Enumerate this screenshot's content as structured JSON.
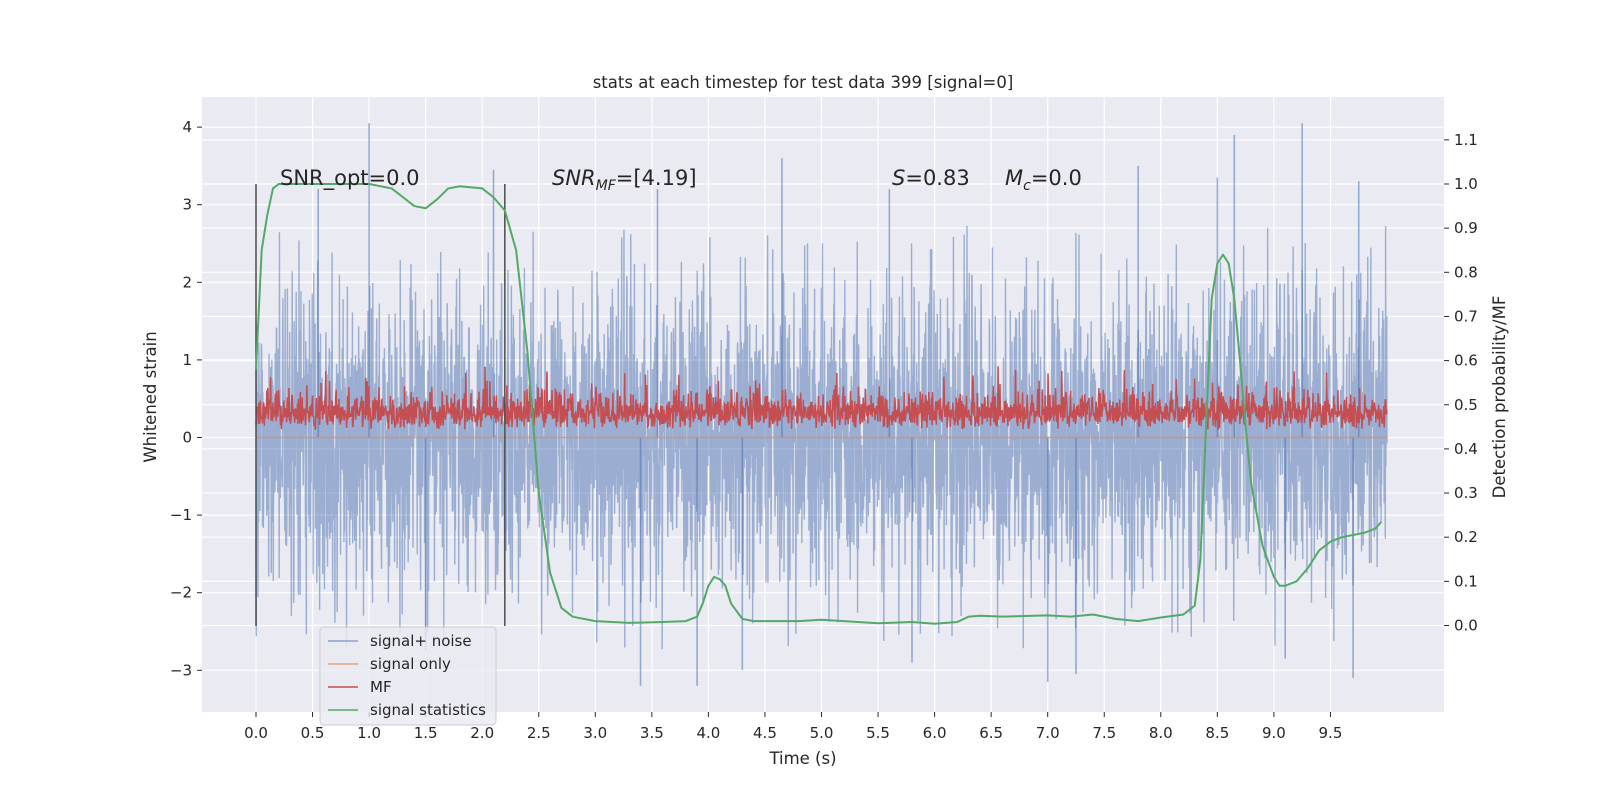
{
  "chart_data": {
    "type": "line",
    "title": "stats at each timestep for test data 399 [signal=0]",
    "xlabel": "Time (s)",
    "ylabel": "Whitened strain",
    "ylabel_right": "Detection probability/MF",
    "xlim": [
      -0.2,
      10.8
    ],
    "ylim": [
      -3.55,
      4.4
    ],
    "ylim_right": [
      -0.2,
      1.2
    ],
    "x_ticks": [
      "0.0",
      "0.5",
      "1.0",
      "1.5",
      "2.0",
      "2.5",
      "3.0",
      "3.5",
      "4.0",
      "4.5",
      "5.0",
      "5.5",
      "6.0",
      "6.5",
      "7.0",
      "7.5",
      "8.0",
      "8.5",
      "9.0",
      "9.5"
    ],
    "y_ticks": [
      "4",
      "3",
      "2",
      "1",
      "0",
      "−1",
      "−2",
      "−3"
    ],
    "y_ticks_right": [
      "1.1",
      "1.0",
      "0.9",
      "0.8",
      "0.7",
      "0.6",
      "0.5",
      "0.4",
      "0.3",
      "0.2",
      "0.1",
      "0.0"
    ],
    "grid": true,
    "legend_position": "lower-left",
    "annotations": {
      "snr_opt": "SNR_opt=0.0",
      "snr_mf_sym": "SNR",
      "snr_mf_sub": "MF",
      "snr_mf_val": "=[4.19]",
      "s_sym": "S",
      "s_val": "=0.83",
      "mc_sym": "M",
      "mc_sub": "c",
      "mc_val": "=0.0"
    },
    "window_markers_x": [
      0.0,
      2.2
    ],
    "series": [
      {
        "name": "signal+ noise",
        "color": "#4c72b0",
        "axis": "left",
        "x_range": [
          0.0,
          10.0
        ],
        "typical_band": [
          -1.5,
          1.5
        ],
        "envelope_upper": 2.6,
        "envelope_lower": -2.6,
        "peaks": [
          [
            1.0,
            4.05
          ],
          [
            9.25,
            4.05
          ],
          [
            8.65,
            3.9
          ],
          [
            2.1,
            3.45
          ],
          [
            4.65,
            3.6
          ],
          [
            7.8,
            3.5
          ],
          [
            8.5,
            3.35
          ],
          [
            9.75,
            3.3
          ],
          [
            5.6,
            3.2
          ],
          [
            3.55,
            3.2
          ],
          [
            0.55,
            3.2
          ]
        ],
        "troughs": [
          [
            3.4,
            -3.2
          ],
          [
            3.9,
            -3.2
          ],
          [
            7.0,
            -3.15
          ],
          [
            9.7,
            -3.1
          ],
          [
            7.25,
            -3.05
          ],
          [
            4.3,
            -3.0
          ],
          [
            5.8,
            -2.9
          ],
          [
            9.1,
            -2.85
          ],
          [
            1.5,
            -2.75
          ]
        ]
      },
      {
        "name": "signal only",
        "color": "#dd8452",
        "axis": "left",
        "x": [
          0.0,
          10.0
        ],
        "y": [
          0.0,
          0.0
        ]
      },
      {
        "name": "MF",
        "color": "#c44e52",
        "axis": "right",
        "x_range": [
          0.0,
          10.0
        ],
        "baseline": 0.46,
        "band": [
          0.43,
          0.55
        ],
        "max": 0.6,
        "min": 0.42
      },
      {
        "name": "signal statistics",
        "color": "#55a868",
        "axis": "right",
        "x": [
          0.0,
          0.05,
          0.1,
          0.15,
          0.2,
          0.3,
          0.5,
          1.0,
          1.2,
          1.3,
          1.4,
          1.5,
          1.6,
          1.7,
          1.8,
          2.0,
          2.1,
          2.2,
          2.3,
          2.4,
          2.5,
          2.6,
          2.7,
          2.8,
          3.0,
          3.3,
          3.6,
          3.8,
          3.9,
          3.95,
          4.0,
          4.05,
          4.1,
          4.15,
          4.2,
          4.3,
          4.4,
          4.5,
          4.8,
          5.0,
          5.5,
          5.8,
          6.0,
          6.2,
          6.3,
          6.4,
          6.6,
          7.0,
          7.2,
          7.4,
          7.6,
          7.8,
          8.0,
          8.2,
          8.3,
          8.35,
          8.4,
          8.45,
          8.5,
          8.55,
          8.6,
          8.65,
          8.7,
          8.75,
          8.8,
          8.9,
          9.0,
          9.05,
          9.1,
          9.2,
          9.3,
          9.4,
          9.5,
          9.6,
          9.7,
          9.8,
          9.9,
          9.95
        ],
        "y": [
          0.58,
          0.85,
          0.93,
          0.99,
          1.0,
          1.0,
          1.0,
          1.0,
          0.99,
          0.97,
          0.95,
          0.945,
          0.965,
          0.99,
          0.995,
          0.99,
          0.97,
          0.94,
          0.85,
          0.62,
          0.3,
          0.12,
          0.04,
          0.02,
          0.01,
          0.006,
          0.008,
          0.01,
          0.02,
          0.05,
          0.09,
          0.11,
          0.105,
          0.09,
          0.05,
          0.015,
          0.01,
          0.01,
          0.01,
          0.013,
          0.005,
          0.008,
          0.004,
          0.008,
          0.02,
          0.022,
          0.02,
          0.023,
          0.02,
          0.025,
          0.015,
          0.01,
          0.018,
          0.025,
          0.045,
          0.15,
          0.45,
          0.74,
          0.82,
          0.84,
          0.82,
          0.74,
          0.6,
          0.45,
          0.32,
          0.18,
          0.11,
          0.09,
          0.09,
          0.1,
          0.13,
          0.17,
          0.19,
          0.2,
          0.205,
          0.21,
          0.22,
          0.235
        ]
      }
    ]
  }
}
